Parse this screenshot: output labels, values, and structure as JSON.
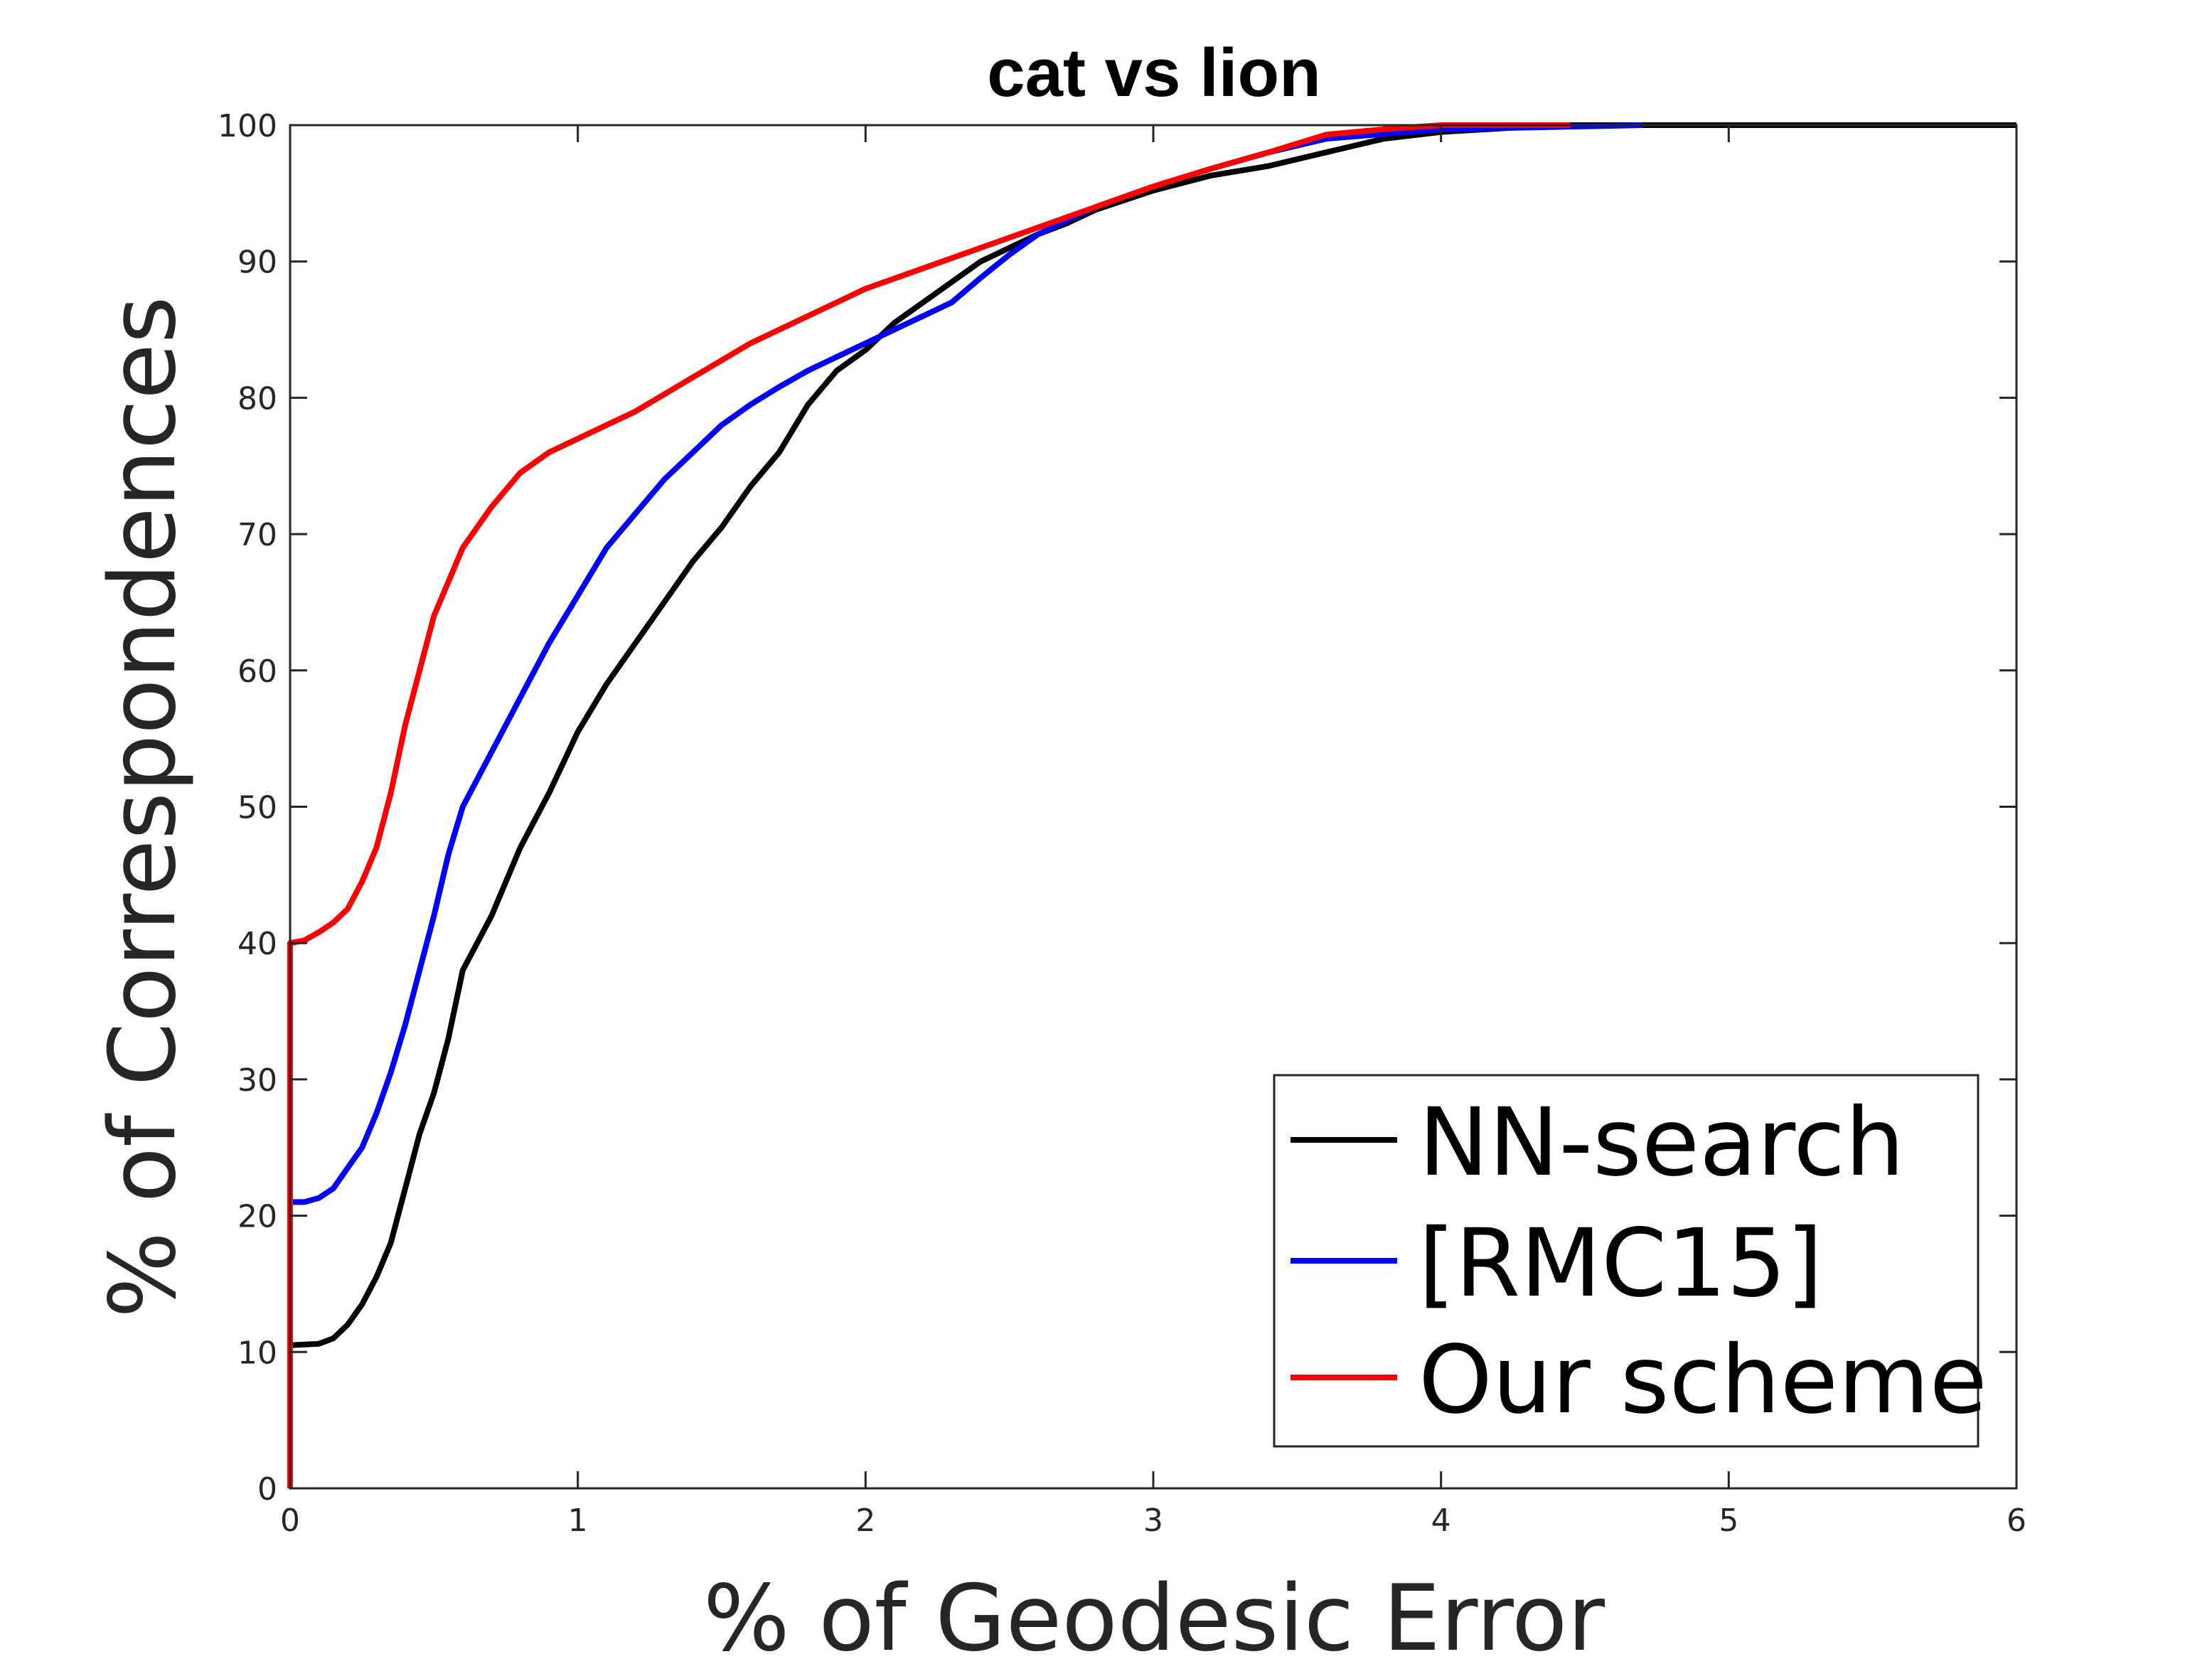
{
  "chart_data": {
    "type": "line",
    "title": "cat vs lion",
    "xlabel": "% of Geodesic Error",
    "ylabel": "% of Correspondences",
    "xlim": [
      0,
      6
    ],
    "ylim": [
      0,
      100
    ],
    "xticks": [
      0,
      1,
      2,
      3,
      4,
      5,
      6
    ],
    "yticks": [
      0,
      10,
      20,
      30,
      40,
      50,
      60,
      70,
      80,
      90,
      100
    ],
    "grid": false,
    "legend_position": "bottom-right",
    "series": [
      {
        "name": "NN-search",
        "color": "#000000",
        "points": [
          [
            0,
            0
          ],
          [
            0,
            10.5
          ],
          [
            0.1,
            10.6
          ],
          [
            0.15,
            11
          ],
          [
            0.2,
            12
          ],
          [
            0.25,
            13.5
          ],
          [
            0.3,
            15.5
          ],
          [
            0.35,
            18
          ],
          [
            0.4,
            22
          ],
          [
            0.45,
            26
          ],
          [
            0.5,
            29
          ],
          [
            0.55,
            33
          ],
          [
            0.6,
            38
          ],
          [
            0.7,
            42
          ],
          [
            0.8,
            47
          ],
          [
            0.9,
            51
          ],
          [
            1.0,
            55.5
          ],
          [
            1.1,
            59
          ],
          [
            1.2,
            62
          ],
          [
            1.3,
            65
          ],
          [
            1.4,
            68
          ],
          [
            1.5,
            70.5
          ],
          [
            1.6,
            73.5
          ],
          [
            1.7,
            76
          ],
          [
            1.8,
            79.5
          ],
          [
            1.9,
            82
          ],
          [
            2.0,
            83.5
          ],
          [
            2.1,
            85.5
          ],
          [
            2.2,
            87
          ],
          [
            2.3,
            88.5
          ],
          [
            2.4,
            90
          ],
          [
            2.5,
            91
          ],
          [
            2.6,
            92
          ],
          [
            2.7,
            92.8
          ],
          [
            2.8,
            93.8
          ],
          [
            2.9,
            94.5
          ],
          [
            3.0,
            95.2
          ],
          [
            3.2,
            96.3
          ],
          [
            3.4,
            97
          ],
          [
            3.6,
            98
          ],
          [
            3.8,
            99
          ],
          [
            4.0,
            99.5
          ],
          [
            4.4,
            100
          ],
          [
            6.0,
            100
          ]
        ]
      },
      {
        "name": "[RMC15]",
        "color": "#0000ff",
        "points": [
          [
            0,
            0
          ],
          [
            0,
            21
          ],
          [
            0.05,
            21
          ],
          [
            0.1,
            21.3
          ],
          [
            0.15,
            22
          ],
          [
            0.2,
            23.5
          ],
          [
            0.25,
            25
          ],
          [
            0.3,
            27.5
          ],
          [
            0.35,
            30.5
          ],
          [
            0.4,
            34
          ],
          [
            0.45,
            38
          ],
          [
            0.5,
            42
          ],
          [
            0.55,
            46.5
          ],
          [
            0.6,
            50
          ],
          [
            0.7,
            54
          ],
          [
            0.8,
            58
          ],
          [
            0.9,
            62
          ],
          [
            1.0,
            65.5
          ],
          [
            1.1,
            69
          ],
          [
            1.2,
            71.5
          ],
          [
            1.3,
            74
          ],
          [
            1.4,
            76
          ],
          [
            1.5,
            78
          ],
          [
            1.6,
            79.5
          ],
          [
            1.7,
            80.8
          ],
          [
            1.8,
            82
          ],
          [
            1.9,
            83
          ],
          [
            2.0,
            84
          ],
          [
            2.1,
            85
          ],
          [
            2.2,
            86
          ],
          [
            2.3,
            87
          ],
          [
            2.4,
            88.8
          ],
          [
            2.5,
            90.5
          ],
          [
            2.6,
            92
          ],
          [
            2.7,
            93
          ],
          [
            2.8,
            94
          ],
          [
            3.0,
            95.5
          ],
          [
            3.2,
            96.8
          ],
          [
            3.4,
            98
          ],
          [
            3.6,
            99
          ],
          [
            4.0,
            99.7
          ],
          [
            4.7,
            100
          ]
        ]
      },
      {
        "name": "Our scheme",
        "color": "#ff0000",
        "points": [
          [
            0,
            0
          ],
          [
            0,
            40
          ],
          [
            0.05,
            40.2
          ],
          [
            0.1,
            40.8
          ],
          [
            0.15,
            41.5
          ],
          [
            0.2,
            42.5
          ],
          [
            0.25,
            44.5
          ],
          [
            0.3,
            47
          ],
          [
            0.35,
            51
          ],
          [
            0.4,
            56
          ],
          [
            0.45,
            60
          ],
          [
            0.5,
            64
          ],
          [
            0.55,
            66.5
          ],
          [
            0.6,
            69
          ],
          [
            0.7,
            72
          ],
          [
            0.8,
            74.5
          ],
          [
            0.9,
            76
          ],
          [
            1.0,
            77
          ],
          [
            1.2,
            79
          ],
          [
            1.4,
            81.5
          ],
          [
            1.6,
            84
          ],
          [
            1.8,
            86
          ],
          [
            2.0,
            88
          ],
          [
            2.2,
            89.5
          ],
          [
            2.4,
            91
          ],
          [
            2.6,
            92.5
          ],
          [
            2.8,
            94
          ],
          [
            3.0,
            95.5
          ],
          [
            3.2,
            96.8
          ],
          [
            3.4,
            98
          ],
          [
            3.6,
            99.3
          ],
          [
            3.8,
            99.7
          ],
          [
            4.0,
            100
          ],
          [
            4.45,
            100
          ]
        ]
      }
    ]
  }
}
